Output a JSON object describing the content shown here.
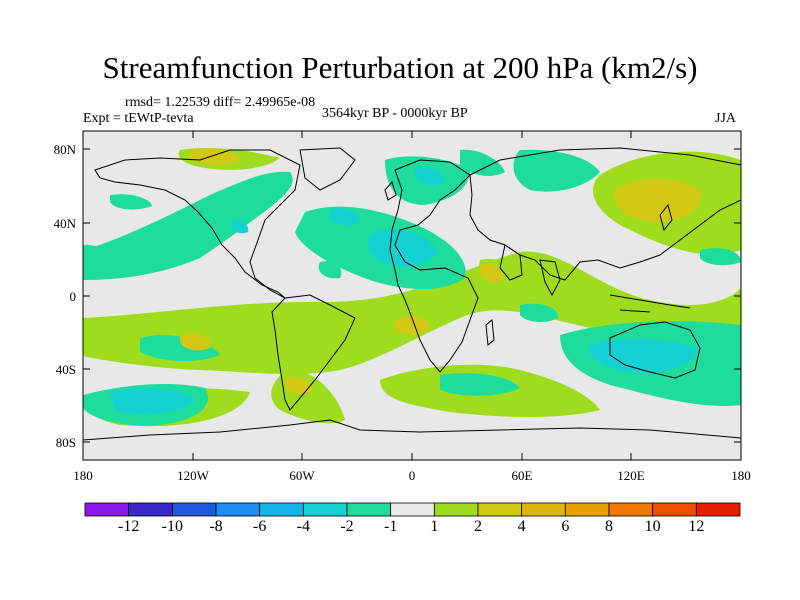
{
  "title": "Streamfunction Perturbation at 200 hPa (km2/s)",
  "stats": "rmsd= 1.22539 diff= 2.49965e-08",
  "experiment": "Expt = tEWtP-tevta",
  "period": "3564kyr BP - 0000kyr BP",
  "season": "JJA",
  "lat_ticks": [
    "80N",
    "40N",
    "0",
    "40S",
    "80S"
  ],
  "lon_ticks": [
    "180",
    "120W",
    "60W",
    "0",
    "60E",
    "120E",
    "180"
  ],
  "colorbar": {
    "labels": [
      "-12",
      "-10",
      "-8",
      "-6",
      "-4",
      "-2",
      "-1",
      "1",
      "2",
      "4",
      "6",
      "8",
      "10",
      "12"
    ],
    "colors": [
      "#8a1aeb",
      "#3c28c8",
      "#1e5adc",
      "#1e8cf0",
      "#14b4e6",
      "#14d2d2",
      "#1edc9b",
      "#ebebeb",
      "#a0dc1e",
      "#d2c814",
      "#dcb40a",
      "#e6a000",
      "#f07800",
      "#f05000",
      "#e61e00"
    ]
  },
  "colors": {
    "background": "#e8e8e8",
    "coast": "#000000"
  }
}
